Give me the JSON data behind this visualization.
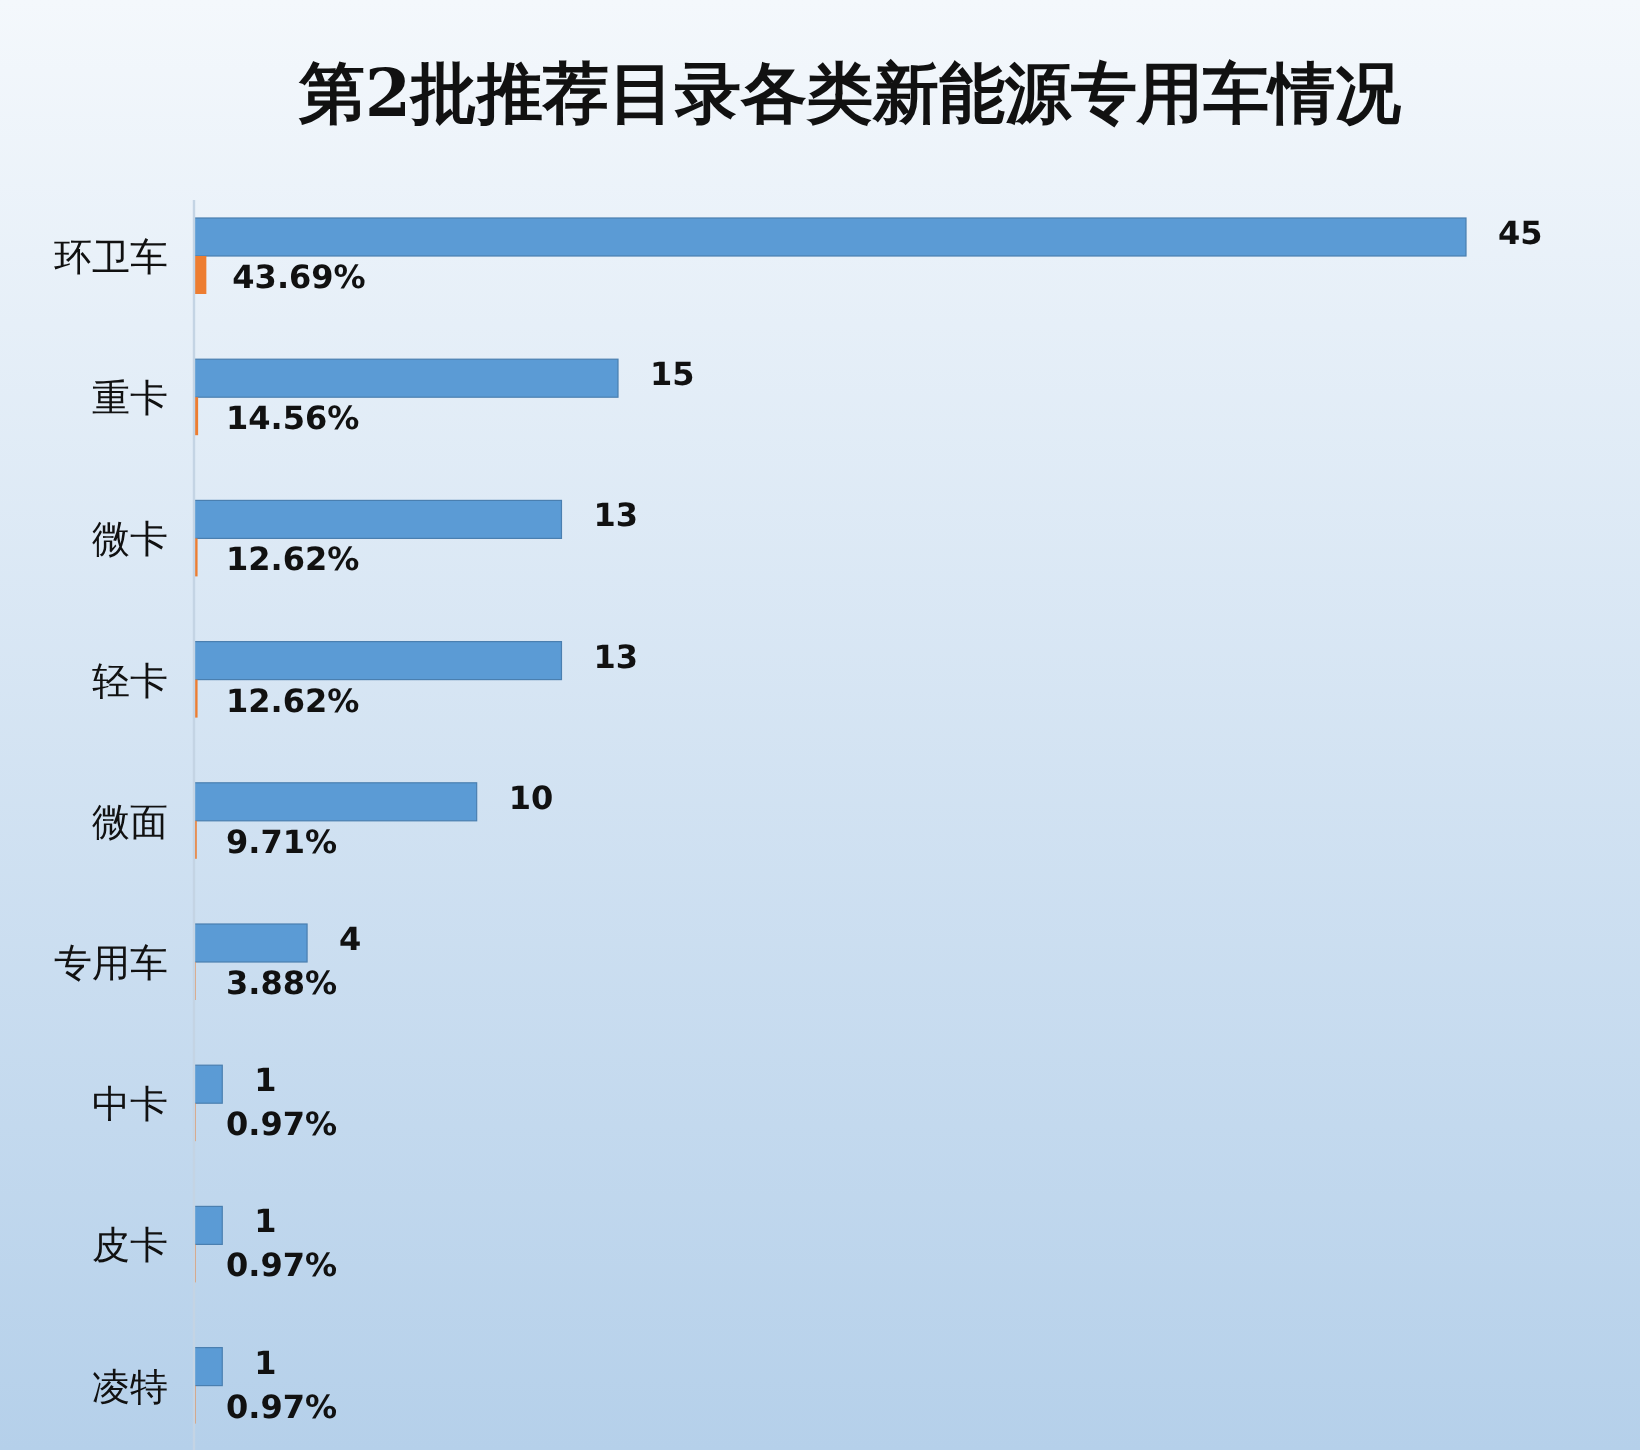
{
  "chart_data": {
    "type": "bar",
    "orientation": "horizontal",
    "title": "第2批推荐目录各类新能源专用车情况",
    "categories": [
      "环卫车",
      "重卡",
      "微卡",
      "轻卡",
      "微面",
      "专用车",
      "中卡",
      "皮卡",
      "凌特"
    ],
    "series": [
      {
        "color": "#5b9bd5",
        "values": [
          45,
          15,
          13,
          13,
          10,
          4,
          1,
          1,
          1
        ],
        "value_labels": [
          "45",
          "15",
          "13",
          "13",
          "10",
          "4",
          "1",
          "1",
          "1"
        ]
      },
      {
        "color": "#ed7d31",
        "values": [
          0.4369,
          0.1456,
          0.1262,
          0.1262,
          0.0971,
          0.0388,
          0.0097,
          0.0097,
          0.0097
        ],
        "value_labels": [
          "43.69%",
          "14.56%",
          "12.62%",
          "12.62%",
          "9.71%",
          "3.88%",
          "0.97%",
          "0.97%",
          "0.97%"
        ]
      }
    ]
  }
}
